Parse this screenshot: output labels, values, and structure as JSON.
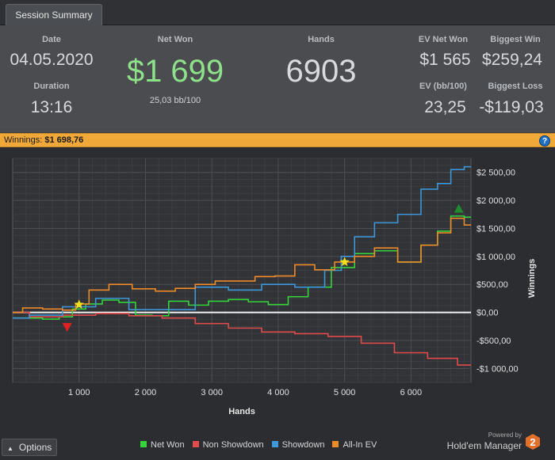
{
  "tab": {
    "label": "Session Summary"
  },
  "summary": {
    "date_label": "Date",
    "date_value": "04.05.2020",
    "duration_label": "Duration",
    "duration_value": "13:16",
    "net_won_label": "Net Won",
    "net_won_value": "$1 699",
    "bb_value": "25,03 bb/100",
    "hands_label": "Hands",
    "hands_value": "6903",
    "ev_net_won_label": "EV Net Won",
    "ev_net_won_value": "$1 565",
    "ev_bb_label": "EV (bb/100)",
    "ev_bb_value": "23,25",
    "biggest_win_label": "Biggest Win",
    "biggest_win_value": "$259,24",
    "biggest_loss_label": "Biggest Loss",
    "biggest_loss_value": "-$119,03"
  },
  "banner": {
    "label": "Winnings:",
    "value": "$1 698,76",
    "help": "?"
  },
  "chart_data": {
    "type": "line",
    "xlabel": "Hands",
    "ylabel": "Winnings",
    "xlim": [
      0,
      6903
    ],
    "ylim": [
      -1250,
      2750
    ],
    "x_ticks": [
      1000,
      2000,
      3000,
      4000,
      5000,
      6000
    ],
    "x_tick_labels": [
      "1 000",
      "2 000",
      "3 000",
      "4 000",
      "5 000",
      "6 000"
    ],
    "y_ticks": [
      2500,
      2000,
      1500,
      1000,
      500,
      0,
      -500,
      -1000
    ],
    "y_tick_labels": [
      "$2 500,00",
      "$2 000,00",
      "$1 500,00",
      "$1 000,00",
      "$500,00",
      "$0,00",
      "-$500,00",
      "-$1 000,00"
    ],
    "grid": true,
    "legend_position": "bottom",
    "series": [
      {
        "name": "Net Won",
        "color": "#35d43b",
        "x": [
          0,
          300,
          600,
          800,
          1000,
          1200,
          1500,
          1700,
          2000,
          2200,
          2500,
          2800,
          3100,
          3400,
          3700,
          4000,
          4300,
          4600,
          5000,
          5300,
          5600,
          6000,
          6300,
          6500,
          6700,
          6903
        ],
        "y": [
          -100,
          -100,
          -120,
          -80,
          60,
          150,
          220,
          180,
          -50,
          -60,
          200,
          130,
          200,
          230,
          190,
          140,
          280,
          450,
          800,
          1050,
          1100,
          900,
          1200,
          1450,
          1720,
          1700
        ]
      },
      {
        "name": "Non Showdown",
        "color": "#e04b4b",
        "x": [
          0,
          500,
          1000,
          1500,
          2000,
          2500,
          3000,
          3500,
          4000,
          4500,
          5000,
          5500,
          6000,
          6500,
          6903
        ],
        "y": [
          0,
          -80,
          -50,
          -20,
          -60,
          -100,
          -200,
          -280,
          -350,
          -380,
          -430,
          -550,
          -720,
          -820,
          -940
        ]
      },
      {
        "name": "Showdown",
        "color": "#3e97d8",
        "x": [
          0,
          500,
          1000,
          1500,
          2000,
          2500,
          3000,
          3500,
          4000,
          4500,
          4900,
          5000,
          5300,
          5600,
          6000,
          6300,
          6500,
          6700,
          6903
        ],
        "y": [
          -100,
          -50,
          100,
          250,
          50,
          50,
          450,
          400,
          500,
          450,
          750,
          1000,
          1350,
          1600,
          1750,
          2200,
          2300,
          2550,
          2600
        ]
      },
      {
        "name": "All-In EV",
        "color": "#ee8a2a",
        "x": [
          0,
          300,
          600,
          900,
          1000,
          1300,
          1600,
          2000,
          2300,
          2600,
          2900,
          3200,
          3500,
          3800,
          4100,
          4400,
          4700,
          5000,
          5300,
          5600,
          6000,
          6300,
          6500,
          6700,
          6903
        ],
        "y": [
          0,
          80,
          60,
          40,
          150,
          400,
          500,
          420,
          380,
          430,
          500,
          560,
          560,
          640,
          650,
          850,
          760,
          900,
          1000,
          1150,
          900,
          1200,
          1420,
          1680,
          1560
        ]
      }
    ],
    "markers": [
      {
        "name": "start-star-1",
        "type": "star",
        "x": 1000,
        "y": 140,
        "color": "#f2e21a"
      },
      {
        "name": "start-star-2",
        "type": "star",
        "x": 5000,
        "y": 900,
        "color": "#f2e21a"
      },
      {
        "name": "biggest-loss-marker",
        "type": "triangle-down",
        "x": 820,
        "y": -260,
        "color": "#e02020"
      },
      {
        "name": "biggest-win-marker",
        "type": "triangle-up",
        "x": 6720,
        "y": 1850,
        "color": "#1f8a2e"
      }
    ]
  },
  "footer": {
    "options_label": "Options",
    "legend": [
      {
        "label": "Net Won",
        "color": "#35d43b"
      },
      {
        "label": "Non Showdown",
        "color": "#e04b4b"
      },
      {
        "label": "Showdown",
        "color": "#3e97d8"
      },
      {
        "label": "All-In EV",
        "color": "#ee8a2a"
      }
    ],
    "powered_by": "Powered by",
    "brand_name": "Hold'em Manager",
    "brand_logo_text": "2"
  }
}
